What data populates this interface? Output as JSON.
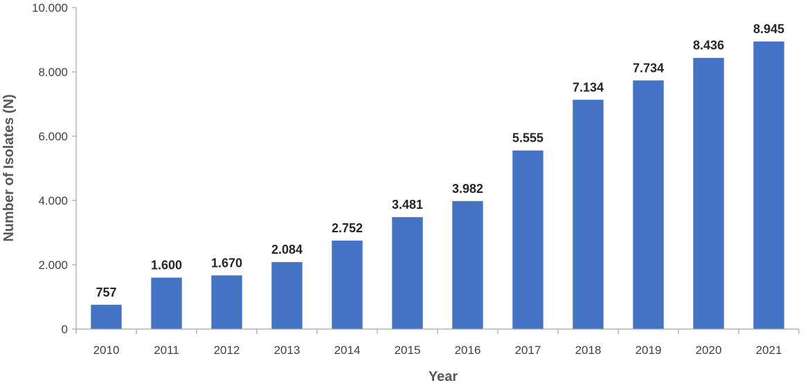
{
  "chart_data": {
    "type": "bar",
    "categories": [
      "2010",
      "2011",
      "2012",
      "2013",
      "2014",
      "2015",
      "2016",
      "2017",
      "2018",
      "2019",
      "2020",
      "2021"
    ],
    "values": [
      757,
      1600,
      1670,
      2084,
      2752,
      3481,
      3982,
      5555,
      7134,
      7734,
      8436,
      8945
    ],
    "data_labels": [
      "757",
      "1.600",
      "1.670",
      "2.084",
      "2.752",
      "3.481",
      "3.982",
      "5.555",
      "7.134",
      "7.734",
      "8.436",
      "8.945"
    ],
    "yticks": [
      0,
      2000,
      4000,
      6000,
      8000,
      10000
    ],
    "ytick_labels": [
      "0",
      "2.000",
      "4.000",
      "6.000",
      "8.000",
      "10.000"
    ],
    "title": "",
    "xlabel": "Year",
    "ylabel": "Number of Isolates (N)",
    "ylim": [
      0,
      10000
    ],
    "grid": false,
    "legend": "none",
    "bar_color": "#4472C4",
    "axis_color": "#A6A6A6"
  }
}
